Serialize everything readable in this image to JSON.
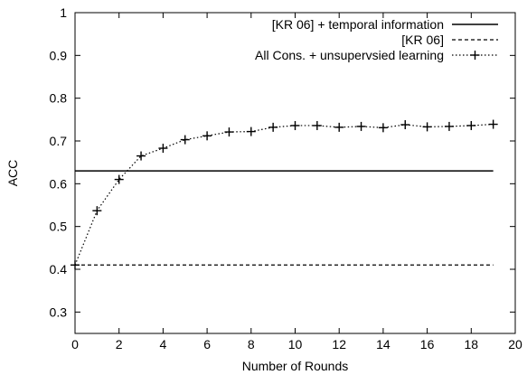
{
  "chart_data": {
    "type": "line",
    "title": "",
    "xlabel": "Number of Rounds",
    "ylabel": "ACC",
    "xlim": [
      0,
      20
    ],
    "ylim": [
      0.25,
      1.0
    ],
    "xticks": [
      0,
      2,
      4,
      6,
      8,
      10,
      12,
      14,
      16,
      18,
      20
    ],
    "yticks": [
      0.3,
      0.4,
      0.5,
      0.6,
      0.7,
      0.8,
      0.9,
      1.0
    ],
    "ytick_labels": [
      "0.3",
      "0.4",
      "0.5",
      "0.6",
      "0.7",
      "0.8",
      "0.9",
      "1"
    ],
    "grid": false,
    "legend_position": "top-right",
    "series": [
      {
        "name": "[KR 06] + temporal information",
        "style": "solid",
        "marker": "none",
        "color": "#000000",
        "x": [
          0,
          19
        ],
        "y": [
          0.63,
          0.63
        ]
      },
      {
        "name": "[KR 06]",
        "style": "dashed",
        "marker": "none",
        "color": "#000000",
        "x": [
          0,
          19
        ],
        "y": [
          0.41,
          0.41
        ]
      },
      {
        "name": "All Cons. + unsupervsied learning",
        "style": "dotted",
        "marker": "plus",
        "color": "#000000",
        "x": [
          0,
          1,
          2,
          3,
          4,
          5,
          6,
          7,
          8,
          9,
          10,
          11,
          12,
          13,
          14,
          15,
          16,
          17,
          18,
          19
        ],
        "y": [
          0.41,
          0.537,
          0.61,
          0.665,
          0.683,
          0.703,
          0.712,
          0.721,
          0.722,
          0.732,
          0.736,
          0.736,
          0.732,
          0.734,
          0.731,
          0.738,
          0.733,
          0.734,
          0.736,
          0.739
        ]
      }
    ]
  }
}
